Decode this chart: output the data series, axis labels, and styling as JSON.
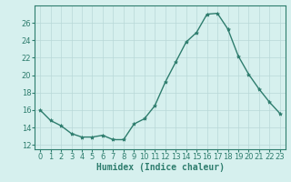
{
  "x": [
    0,
    1,
    2,
    3,
    4,
    5,
    6,
    7,
    8,
    9,
    10,
    11,
    12,
    13,
    14,
    15,
    16,
    17,
    18,
    19,
    20,
    21,
    22,
    23
  ],
  "y": [
    16.0,
    14.8,
    14.2,
    13.3,
    12.9,
    12.9,
    13.1,
    12.6,
    12.6,
    14.4,
    15.0,
    16.5,
    19.2,
    21.5,
    23.8,
    24.9,
    27.0,
    27.1,
    25.3,
    22.2,
    20.1,
    18.4,
    16.9,
    15.6
  ],
  "line_color": "#2e7d6e",
  "marker": "*",
  "marker_size": 3,
  "bg_color": "#d6f0ee",
  "grid_color": "#b8d8d8",
  "xlabel": "Humidex (Indice chaleur)",
  "xlim": [
    -0.5,
    23.5
  ],
  "ylim": [
    11.5,
    28
  ],
  "yticks": [
    12,
    14,
    16,
    18,
    20,
    22,
    24,
    26
  ],
  "xticks": [
    0,
    1,
    2,
    3,
    4,
    5,
    6,
    7,
    8,
    9,
    10,
    11,
    12,
    13,
    14,
    15,
    16,
    17,
    18,
    19,
    20,
    21,
    22,
    23
  ],
  "xlabel_fontsize": 7,
  "tick_fontsize": 6,
  "tick_color": "#2e7d6e",
  "spine_color": "#2e7d6e",
  "linewidth": 1.0
}
